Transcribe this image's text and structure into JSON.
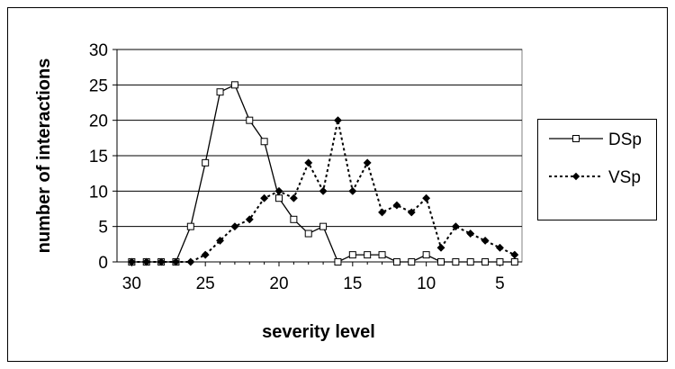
{
  "chart_data": {
    "type": "line",
    "xlabel": "severity level",
    "ylabel": "number of interactions",
    "xlim": [
      31,
      3.5
    ],
    "ylim": [
      0,
      30
    ],
    "x_reversed": true,
    "x_ticks": [
      30,
      25,
      20,
      15,
      10,
      5
    ],
    "y_ticks": [
      0,
      5,
      10,
      15,
      20,
      25,
      30
    ],
    "grid": "horizontal",
    "legend_position": "right",
    "x": [
      30,
      29,
      28,
      27,
      26,
      25,
      24,
      23,
      22,
      21,
      20,
      19,
      18,
      17,
      16,
      15,
      14,
      13,
      12,
      11,
      10,
      9,
      8,
      7,
      6,
      5,
      4
    ],
    "series": [
      {
        "name": "DSp",
        "style": "solid",
        "marker": "open-square",
        "color": "#000000",
        "values": [
          0,
          0,
          0,
          0,
          5,
          14,
          24,
          25,
          20,
          17,
          9,
          6,
          4,
          5,
          0,
          1,
          1,
          1,
          0,
          0,
          1,
          0,
          0,
          0,
          0,
          0,
          0
        ]
      },
      {
        "name": "VSp",
        "style": "dotted",
        "marker": "filled-diamond",
        "color": "#000000",
        "values": [
          0,
          0,
          0,
          0,
          0,
          1,
          3,
          5,
          6,
          9,
          10,
          9,
          14,
          10,
          20,
          10,
          14,
          7,
          8,
          7,
          9,
          2,
          5,
          4,
          3,
          2,
          1
        ]
      }
    ]
  }
}
